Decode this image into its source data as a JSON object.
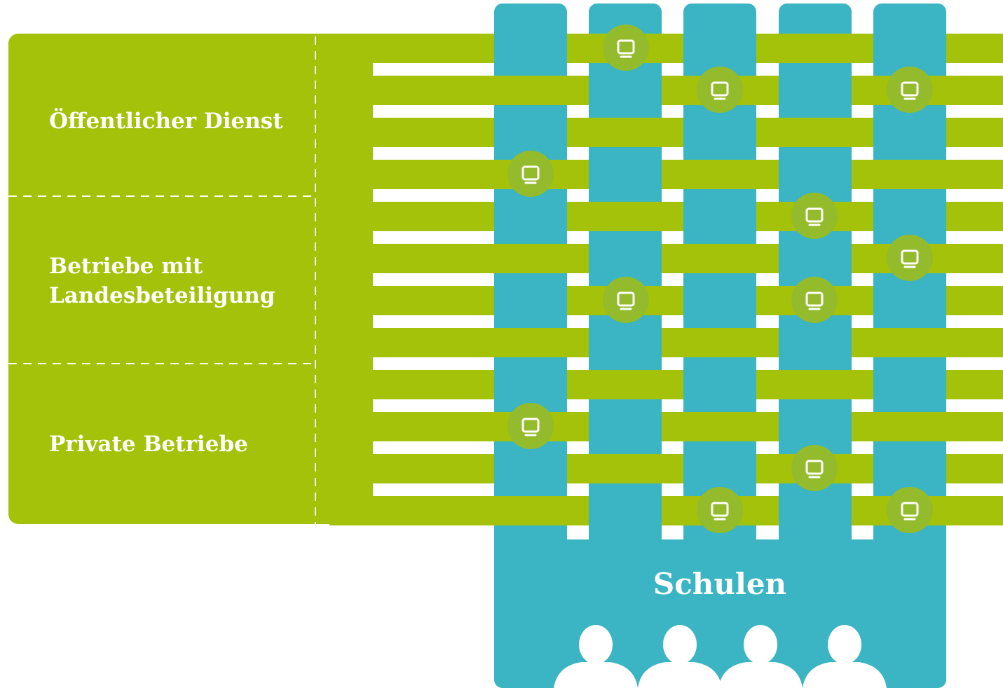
{
  "sectors": [
    [
      "Öffentlicher Dienst"
    ],
    [
      "Betriebe mit",
      "Landesbeteiligung"
    ],
    [
      "Private Betriebe"
    ]
  ],
  "schools": "Schulen"
}
